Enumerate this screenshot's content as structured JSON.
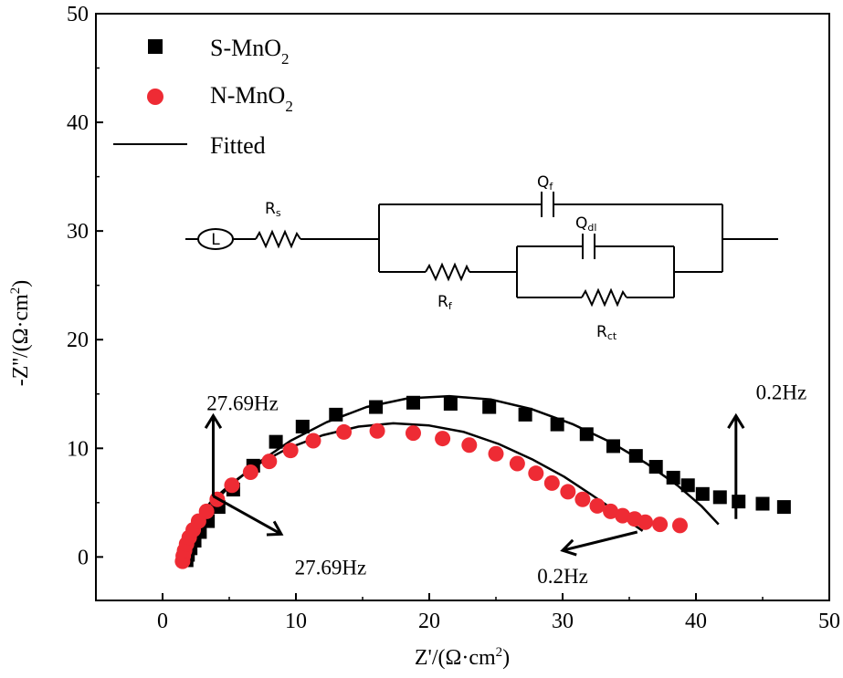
{
  "chart_data": {
    "type": "scatter",
    "title": "",
    "xlabel": "Z'/(Ω·cm",
    "xlabel_sup": "2",
    "xlabel_end": ")",
    "ylabel": "-Z''/(Ω·cm",
    "ylabel_sup": "2",
    "ylabel_end": ")",
    "xlim": [
      -5,
      50
    ],
    "ylim": [
      -4,
      50
    ],
    "x_ticks": [
      0,
      10,
      20,
      30,
      40,
      50
    ],
    "y_ticks": [
      0,
      10,
      20,
      30,
      40,
      50
    ],
    "legend_position": "top-left",
    "series": [
      {
        "name": "S-MnO",
        "name_sub": "2",
        "marker": "square",
        "color": "#000000",
        "points": [
          [
            1.8,
            -0.3
          ],
          [
            1.9,
            0.2
          ],
          [
            2.1,
            0.8
          ],
          [
            2.4,
            1.5
          ],
          [
            2.8,
            2.3
          ],
          [
            3.4,
            3.3
          ],
          [
            4.2,
            4.6
          ],
          [
            5.3,
            6.2
          ],
          [
            6.8,
            8.4
          ],
          [
            8.5,
            10.6
          ],
          [
            10.5,
            12.0
          ],
          [
            13.0,
            13.1
          ],
          [
            16.0,
            13.8
          ],
          [
            18.8,
            14.2
          ],
          [
            21.6,
            14.1
          ],
          [
            24.5,
            13.8
          ],
          [
            27.2,
            13.1
          ],
          [
            29.6,
            12.2
          ],
          [
            31.8,
            11.3
          ],
          [
            33.8,
            10.2
          ],
          [
            35.5,
            9.3
          ],
          [
            37.0,
            8.3
          ],
          [
            38.3,
            7.3
          ],
          [
            39.4,
            6.6
          ],
          [
            40.5,
            5.8
          ],
          [
            41.8,
            5.5
          ],
          [
            43.2,
            5.1
          ],
          [
            45.0,
            4.9
          ],
          [
            46.6,
            4.6
          ]
        ]
      },
      {
        "name": "N-MnO",
        "name_sub": "2",
        "marker": "circle",
        "color": "#ee2b34",
        "points": [
          [
            1.5,
            -0.4
          ],
          [
            1.55,
            0.1
          ],
          [
            1.65,
            0.6
          ],
          [
            1.8,
            1.2
          ],
          [
            2.0,
            1.8
          ],
          [
            2.3,
            2.5
          ],
          [
            2.7,
            3.3
          ],
          [
            3.3,
            4.2
          ],
          [
            4.1,
            5.3
          ],
          [
            5.2,
            6.6
          ],
          [
            6.6,
            7.8
          ],
          [
            8.0,
            8.8
          ],
          [
            9.6,
            9.8
          ],
          [
            11.3,
            10.7
          ],
          [
            13.6,
            11.5
          ],
          [
            16.1,
            11.6
          ],
          [
            18.8,
            11.4
          ],
          [
            21.0,
            10.9
          ],
          [
            23.0,
            10.3
          ],
          [
            25.0,
            9.5
          ],
          [
            26.6,
            8.6
          ],
          [
            28.0,
            7.7
          ],
          [
            29.2,
            6.8
          ],
          [
            30.4,
            6.0
          ],
          [
            31.5,
            5.3
          ],
          [
            32.6,
            4.7
          ],
          [
            33.6,
            4.2
          ],
          [
            34.5,
            3.8
          ],
          [
            35.4,
            3.5
          ],
          [
            36.2,
            3.2
          ],
          [
            37.3,
            3.0
          ],
          [
            38.8,
            2.9
          ]
        ]
      }
    ],
    "fits": [
      {
        "name": "Fitted",
        "color": "#000000",
        "points": [
          [
            1.7,
            -0.8
          ],
          [
            1.75,
            0.2
          ],
          [
            1.95,
            1.2
          ],
          [
            2.3,
            2.3
          ],
          [
            2.9,
            3.6
          ],
          [
            3.8,
            5.0
          ],
          [
            5.2,
            6.7
          ],
          [
            7.2,
            8.7
          ],
          [
            9.6,
            10.7
          ],
          [
            12.3,
            12.4
          ],
          [
            15.3,
            13.8
          ],
          [
            18.4,
            14.6
          ],
          [
            21.5,
            14.8
          ],
          [
            24.6,
            14.5
          ],
          [
            27.7,
            13.6
          ],
          [
            30.8,
            12.2
          ],
          [
            33.7,
            10.5
          ],
          [
            36.3,
            8.6
          ],
          [
            38.6,
            6.6
          ],
          [
            40.4,
            4.7
          ],
          [
            41.7,
            3.0
          ]
        ]
      },
      {
        "name": "Fitted",
        "color": "#000000",
        "points": [
          [
            1.4,
            -0.9
          ],
          [
            1.45,
            0.0
          ],
          [
            1.6,
            1.0
          ],
          [
            2.0,
            2.3
          ],
          [
            2.7,
            3.7
          ],
          [
            3.7,
            5.2
          ],
          [
            5.2,
            6.8
          ],
          [
            7.1,
            8.5
          ],
          [
            9.4,
            10.0
          ],
          [
            12.0,
            11.2
          ],
          [
            14.7,
            12.0
          ],
          [
            17.3,
            12.3
          ],
          [
            20.0,
            12.1
          ],
          [
            22.6,
            11.5
          ],
          [
            25.2,
            10.4
          ],
          [
            27.7,
            9.0
          ],
          [
            30.1,
            7.4
          ],
          [
            32.2,
            5.7
          ],
          [
            34.0,
            4.2
          ],
          [
            35.3,
            3.0
          ],
          [
            36.0,
            2.4
          ]
        ]
      }
    ],
    "annotations": [
      {
        "text": "27.69Hz",
        "x": 6.0,
        "y": 13.5
      },
      {
        "text": "27.69Hz",
        "x": 12.6,
        "y": -1.6
      },
      {
        "text": "0.2Hz",
        "x": 46.4,
        "y": 14.5
      },
      {
        "text": "0.2Hz",
        "x": 30.0,
        "y": -2.4
      }
    ],
    "arrows": [
      {
        "from": [
          3.8,
          5.6
        ],
        "to": [
          3.8,
          13.0
        ],
        "direction": "up"
      },
      {
        "from": [
          3.8,
          5.6
        ],
        "to": [
          8.9,
          2.1
        ],
        "direction": "down-right"
      },
      {
        "from": [
          43.0,
          3.5
        ],
        "to": [
          43.0,
          13.0
        ],
        "direction": "up"
      },
      {
        "from": [
          35.6,
          2.3
        ],
        "to": [
          30.0,
          0.6
        ],
        "direction": "left"
      }
    ],
    "legend": [
      {
        "label": "S-MnO",
        "sub": "2",
        "marker": "square"
      },
      {
        "label": "N-MnO",
        "sub": "2",
        "marker": "circle"
      },
      {
        "label": "Fitted",
        "marker": "line"
      }
    ],
    "circuit": {
      "labels": {
        "L": "L",
        "Rs_main": "R",
        "Rs_sub": "s",
        "Qf_main": "Q",
        "Qf_sub": "f",
        "Qdl_main": "Q",
        "Qdl_sub": "dl",
        "Rf_main": "R",
        "Rf_sub": "f",
        "Rct_main": "R",
        "Rct_sub": "ct"
      }
    }
  }
}
